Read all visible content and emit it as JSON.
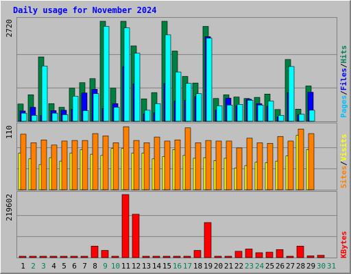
{
  "chart_data": {
    "type": "bar",
    "title": "Daily usage for November 2024",
    "categories": [
      "1",
      "2",
      "3",
      "4",
      "5",
      "6",
      "7",
      "8",
      "9",
      "10",
      "11",
      "12",
      "13",
      "14",
      "15",
      "16",
      "17",
      "18",
      "19",
      "20",
      "21",
      "22",
      "23",
      "24",
      "25",
      "26",
      "27",
      "28",
      "29",
      "30",
      "31"
    ],
    "weekend_days": [
      "2",
      "3",
      "9",
      "10",
      "16",
      "17",
      "23",
      "24",
      "30",
      "31"
    ],
    "panels": [
      {
        "id": "hits",
        "max_label": "2720",
        "ylim": [
          0,
          2720
        ],
        "series": [
          {
            "name": "Hits",
            "color": "#008040",
            "values": [
              470,
              720,
              1750,
              480,
              380,
              900,
              1050,
              1160,
              2720,
              900,
              2720,
              2050,
              610,
              780,
              2720,
              1910,
              1220,
              1040,
              2580,
              620,
              720,
              660,
              620,
              650,
              740,
              320,
              1680,
              330,
              960,
              0,
              0
            ]
          },
          {
            "name": "Files",
            "color": "#0000ff",
            "values": [
              280,
              380,
              160,
              290,
              300,
              330,
              770,
              870,
              350,
              480,
              1490,
              1020,
              200,
              230,
              1030,
              550,
              570,
              670,
              2300,
              300,
              630,
              420,
              600,
              480,
              410,
              120,
              780,
              180,
              790,
              0,
              0
            ]
          },
          {
            "name": "Pages",
            "color": "#00ffff",
            "values": [
              220,
              160,
              1500,
              220,
              180,
              680,
              290,
              750,
              2580,
              380,
              2540,
              1850,
              300,
              480,
              2350,
              1340,
              1030,
              750,
              2260,
              420,
              440,
              460,
              570,
              440,
              550,
              160,
              1490,
              190,
              300,
              0,
              0
            ]
          }
        ]
      },
      {
        "id": "visits",
        "max_label": "110",
        "ylim": [
          0,
          110
        ],
        "series": [
          {
            "name": "Visits",
            "color": "#ffff00",
            "values": [
              64,
              54,
              44,
              56,
              50,
              64,
              70,
              62,
              60,
              72,
              72,
              64,
              64,
              54,
              58,
              70,
              60,
              55,
              56,
              51,
              55,
              38,
              42,
              48,
              47,
              50,
              59,
              95,
              70,
              0,
              0
            ]
          },
          {
            "name": "Sites",
            "color": "#ff8000",
            "values": [
              97,
              82,
              87,
              78,
              85,
              86,
              86,
              98,
              94,
              82,
              110,
              86,
              82,
              92,
              85,
              87,
              108,
              82,
              86,
              85,
              85,
              73,
              90,
              82,
              81,
              93,
              85,
              106,
              98,
              0,
              0
            ]
          }
        ]
      },
      {
        "id": "kbytes",
        "max_label": "219602",
        "ylim": [
          0,
          219602
        ],
        "series": [
          {
            "name": "KBytes",
            "color": "#ff0000",
            "values": [
              1400,
              3000,
              1100,
              1200,
              1100,
              1300,
              3800,
              40000,
              25000,
              1000,
              219602,
              151000,
              1400,
              1600,
              2800,
              4300,
              3000,
              25000,
              122000,
              1200,
              3000,
              22000,
              30000,
              17000,
              19000,
              28000,
              2700,
              40000,
              6000,
              8000,
              0
            ]
          }
        ]
      }
    ],
    "legend_right": [
      "Pages",
      "/",
      "Files",
      "/",
      "Hits"
    ],
    "legend_right_mid": [
      "Sites",
      "/",
      "Visits"
    ],
    "legend_right_bottom": [
      "KBytes"
    ],
    "colors": {
      "title": "#0000ff",
      "weekday_label": "#000000",
      "weekend_label": "#00805c",
      "panel_bg": "#c0c0c0",
      "gridline": "#808080",
      "pages_legend": "#00c0ff",
      "files_legend": "#0000ff",
      "hits_legend": "#00805c",
      "sites_legend": "#ff8000",
      "visits_legend": "#ffff00",
      "kbytes_legend": "#ff0000"
    }
  }
}
